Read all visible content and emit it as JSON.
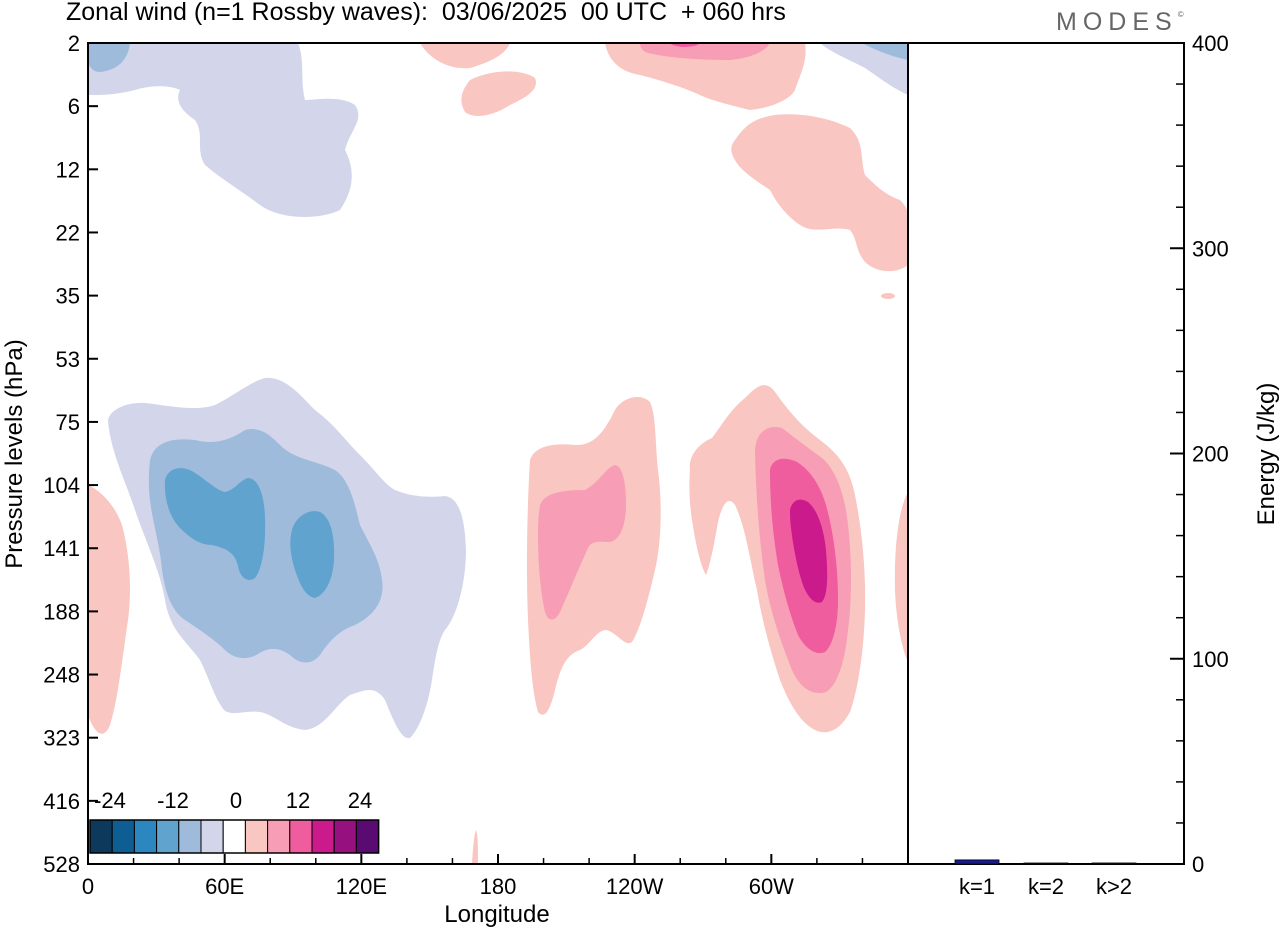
{
  "title": "Zonal wind (n=1 Rossby waves):  03/06/2025  00 UTC  + 060 hrs",
  "logo": "MODES",
  "logo_mark": "©",
  "chart_data": [
    {
      "type": "contour",
      "xlabel": "Longitude",
      "ylabel": "Pressure levels (hPa)",
      "x_ticks": [
        "0",
        "60E",
        "120E",
        "180",
        "120W",
        "60W"
      ],
      "xlim_degrees_east": [
        0,
        360
      ],
      "y_ticks": [
        "2",
        "6",
        "12",
        "22",
        "35",
        "53",
        "75",
        "104",
        "141",
        "188",
        "248",
        "323",
        "416",
        "528"
      ],
      "y_order": "top-to-bottom",
      "colorbar": {
        "labels": [
          "-24",
          "-12",
          "0",
          "12",
          "24"
        ],
        "colors": [
          "#0d3a5c",
          "#0e5e93",
          "#2c87c0",
          "#61a3cf",
          "#9fbbdb",
          "#d3d6ea",
          "#ffffff",
          "#f9c6c1",
          "#f79db5",
          "#ef5d9e",
          "#cb1a8c",
          "#96107f",
          "#590b72"
        ]
      },
      "regions": [
        {
          "level": "-3",
          "color": "#d3d6ea",
          "lon_range": [
            0,
            100
          ],
          "p_range": [
            2,
            22
          ]
        },
        {
          "level": "-3",
          "color": "#d3d6ea",
          "lon_range": [
            15,
            140
          ],
          "p_range": [
            55,
            330
          ]
        },
        {
          "level": "-6",
          "color": "#9fbbdb",
          "lon_range": [
            20,
            110
          ],
          "p_range": [
            80,
            255
          ]
        },
        {
          "level": "-9",
          "color": "#61a3cf",
          "lon_range": [
            28,
            98
          ],
          "p_range": [
            104,
            195
          ]
        },
        {
          "level": "3",
          "color": "#f9c6c1",
          "lon_range": [
            0,
            15
          ],
          "p_range": [
            104,
            330
          ]
        },
        {
          "level": "3",
          "color": "#f9c6c1",
          "lon_range": [
            195,
            250
          ],
          "p_range": [
            70,
            290
          ]
        },
        {
          "level": "6",
          "color": "#f79db5",
          "lon_range": [
            198,
            235
          ],
          "p_range": [
            104,
            188
          ]
        },
        {
          "level": "3",
          "color": "#f9c6c1",
          "lon_range": [
            262,
            360
          ],
          "p_range": [
            55,
            320
          ]
        },
        {
          "level": "6",
          "color": "#f79db5",
          "lon_range": [
            290,
            328
          ],
          "p_range": [
            75,
            280
          ]
        },
        {
          "level": "9",
          "color": "#ef5d9e",
          "lon_range": [
            295,
            323
          ],
          "p_range": [
            104,
            255
          ]
        },
        {
          "level": "12",
          "color": "#cb1a8c",
          "lon_range": [
            305,
            322
          ],
          "p_range": [
            120,
            188
          ]
        },
        {
          "level": "3",
          "color": "#f9c6c1",
          "lon_range": [
            145,
            360
          ],
          "p_range": [
            2,
            30
          ]
        },
        {
          "level": "6",
          "color": "#f79db5",
          "lon_range": [
            235,
            290
          ],
          "p_range": [
            2,
            3
          ]
        },
        {
          "level": "-3",
          "color": "#d3d6ea",
          "lon_range": [
            322,
            360
          ],
          "p_range": [
            2,
            5
          ]
        },
        {
          "level": "-6",
          "color": "#9fbbdb",
          "lon_range": [
            0,
            15
          ],
          "p_range": [
            2,
            3
          ]
        }
      ]
    },
    {
      "type": "bar",
      "categories": [
        "k=1",
        "k=2",
        "k>2"
      ],
      "values": [
        2,
        0,
        0.5
      ],
      "ylabel": "Energy (J/kg)",
      "ylim": [
        0,
        400
      ],
      "y_ticks": [
        0,
        100,
        200,
        300,
        400
      ],
      "y_minor_step": 20,
      "bar_colors": [
        "#1a1a8c",
        "#1a1a8c",
        "#1a1a8c"
      ]
    }
  ]
}
